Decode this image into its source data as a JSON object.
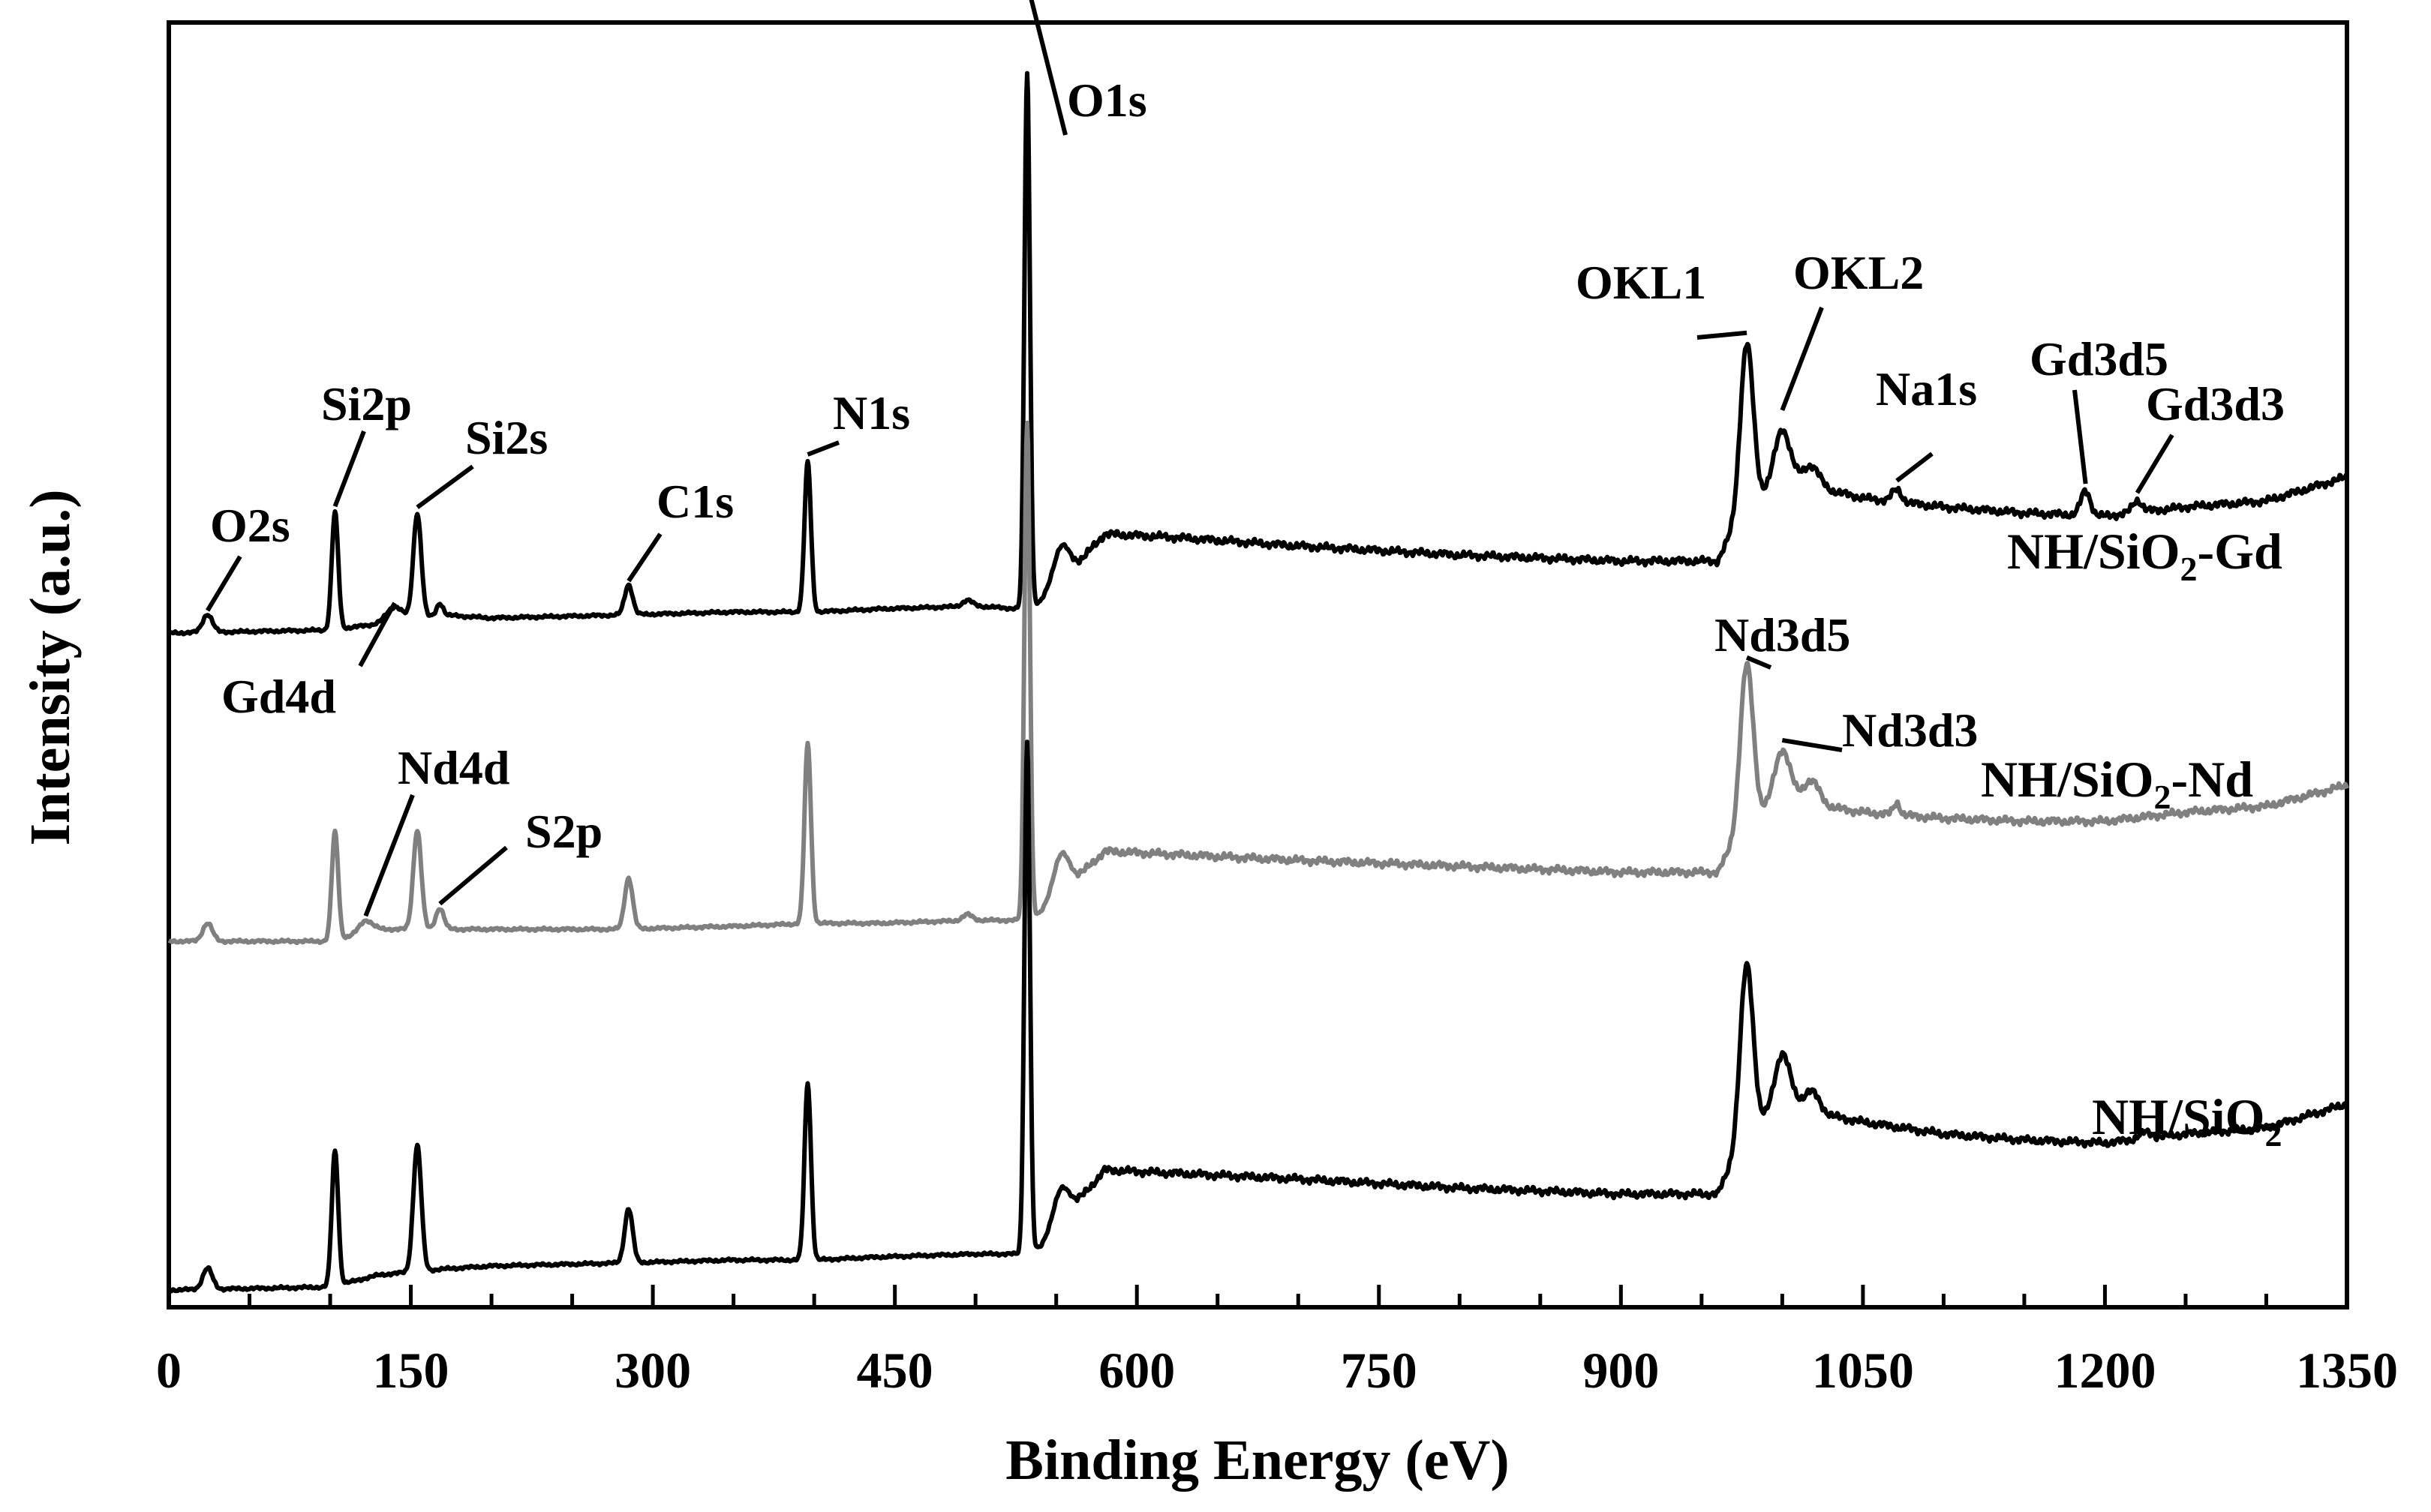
{
  "chart_data": {
    "type": "line",
    "title": "",
    "xlabel": "Binding Energy (eV)",
    "ylabel": "Intensity (a.u.)",
    "xlim": [
      0,
      1350
    ],
    "x_ticks": [
      0,
      150,
      300,
      450,
      600,
      750,
      900,
      1050,
      1200,
      1350
    ],
    "x_minor_step": 50,
    "y_ticks_labeled": false,
    "colors": {
      "black": "#000000",
      "gray": "#808080"
    },
    "series": [
      {
        "name": "NH/SiO2-Gd",
        "label_main": "NH/SiO",
        "label_sub": "2",
        "label_suffix": "-Gd",
        "color": "#000000",
        "baseline": 0.0,
        "background": [
          [
            0,
            0.04
          ],
          [
            100,
            0.05
          ],
          [
            130,
            0.07
          ],
          [
            170,
            0.1
          ],
          [
            200,
            0.09
          ],
          [
            280,
            0.1
          ],
          [
            350,
            0.11
          ],
          [
            400,
            0.11
          ],
          [
            440,
            0.12
          ],
          [
            500,
            0.13
          ],
          [
            528,
            0.12
          ],
          [
            540,
            0.14
          ],
          [
            555,
            0.22
          ],
          [
            580,
            0.37
          ],
          [
            620,
            0.36
          ],
          [
            700,
            0.33
          ],
          [
            800,
            0.3
          ],
          [
            900,
            0.28
          ],
          [
            960,
            0.28
          ],
          [
            975,
            0.44
          ],
          [
            1000,
            0.55
          ],
          [
            1050,
            0.49
          ],
          [
            1100,
            0.46
          ],
          [
            1150,
            0.44
          ],
          [
            1200,
            0.43
          ],
          [
            1250,
            0.46
          ],
          [
            1300,
            0.48
          ],
          [
            1350,
            0.56
          ]
        ],
        "peaks": [
          {
            "center": 24,
            "height": 0.06,
            "width": 3
          },
          {
            "center": 103,
            "height": 0.39,
            "width": 2
          },
          {
            "center": 154,
            "height": 0.35,
            "width": 2.5
          },
          {
            "center": 140,
            "height": 0.05,
            "width": 5
          },
          {
            "center": 168,
            "height": 0.04,
            "width": 2
          },
          {
            "center": 285,
            "height": 0.1,
            "width": 2.5
          },
          {
            "center": 396,
            "height": 0.5,
            "width": 2
          },
          {
            "center": 495,
            "height": 0.02,
            "width": 3
          },
          {
            "center": 532,
            "height": 1.78,
            "width": 1.7
          },
          {
            "center": 553,
            "height": 0.12,
            "width": 5
          },
          {
            "center": 978,
            "height": 0.55,
            "width": 4
          },
          {
            "center": 1000,
            "height": 0.17,
            "width": 5
          },
          {
            "center": 1018,
            "height": 0.07,
            "width": 5
          },
          {
            "center": 1071,
            "height": 0.04,
            "width": 3
          },
          {
            "center": 1188,
            "height": 0.08,
            "width": 3
          },
          {
            "center": 1220,
            "height": 0.04,
            "width": 3
          }
        ]
      },
      {
        "name": "NH/SiO2-Nd",
        "label_main": "NH/SiO",
        "label_sub": "2",
        "label_suffix": "-Nd",
        "color": "#808080",
        "baseline": 0.0,
        "background": [
          [
            0,
            0.0
          ],
          [
            100,
            0.0
          ],
          [
            130,
            0.04
          ],
          [
            170,
            0.04
          ],
          [
            200,
            0.04
          ],
          [
            280,
            0.04
          ],
          [
            350,
            0.05
          ],
          [
            400,
            0.06
          ],
          [
            440,
            0.06
          ],
          [
            500,
            0.07
          ],
          [
            528,
            0.07
          ],
          [
            540,
            0.09
          ],
          [
            555,
            0.17
          ],
          [
            580,
            0.3
          ],
          [
            620,
            0.29
          ],
          [
            700,
            0.27
          ],
          [
            800,
            0.25
          ],
          [
            900,
            0.23
          ],
          [
            960,
            0.23
          ],
          [
            975,
            0.38
          ],
          [
            1000,
            0.47
          ],
          [
            1050,
            0.43
          ],
          [
            1100,
            0.41
          ],
          [
            1150,
            0.4
          ],
          [
            1200,
            0.4
          ],
          [
            1250,
            0.43
          ],
          [
            1300,
            0.45
          ],
          [
            1350,
            0.52
          ]
        ],
        "peaks": [
          {
            "center": 24,
            "height": 0.06,
            "width": 3
          },
          {
            "center": 103,
            "height": 0.36,
            "width": 2
          },
          {
            "center": 154,
            "height": 0.33,
            "width": 2.5
          },
          {
            "center": 122,
            "height": 0.04,
            "width": 4
          },
          {
            "center": 168,
            "height": 0.07,
            "width": 2.5
          },
          {
            "center": 285,
            "height": 0.17,
            "width": 2.5
          },
          {
            "center": 396,
            "height": 0.6,
            "width": 2
          },
          {
            "center": 495,
            "height": 0.02,
            "width": 3
          },
          {
            "center": 532,
            "height": 1.65,
            "width": 1.7
          },
          {
            "center": 553,
            "height": 0.13,
            "width": 5
          },
          {
            "center": 978,
            "height": 0.53,
            "width": 4
          },
          {
            "center": 1000,
            "height": 0.17,
            "width": 5
          },
          {
            "center": 1018,
            "height": 0.08,
            "width": 5
          },
          {
            "center": 1071,
            "height": 0.04,
            "width": 2
          }
        ]
      },
      {
        "name": "NH/SiO2",
        "label_main": "NH/SiO",
        "label_sub": "2",
        "label_suffix": "",
        "color": "#000000",
        "baseline": 0.0,
        "background": [
          [
            0,
            0.0
          ],
          [
            100,
            0.01
          ],
          [
            130,
            0.05
          ],
          [
            170,
            0.07
          ],
          [
            200,
            0.08
          ],
          [
            280,
            0.09
          ],
          [
            350,
            0.1
          ],
          [
            400,
            0.1
          ],
          [
            440,
            0.11
          ],
          [
            500,
            0.12
          ],
          [
            528,
            0.12
          ],
          [
            540,
            0.14
          ],
          [
            555,
            0.24
          ],
          [
            580,
            0.4
          ],
          [
            620,
            0.39
          ],
          [
            700,
            0.37
          ],
          [
            800,
            0.34
          ],
          [
            900,
            0.32
          ],
          [
            960,
            0.32
          ],
          [
            975,
            0.5
          ],
          [
            1000,
            0.61
          ],
          [
            1050,
            0.56
          ],
          [
            1100,
            0.52
          ],
          [
            1150,
            0.5
          ],
          [
            1200,
            0.49
          ],
          [
            1250,
            0.52
          ],
          [
            1300,
            0.54
          ],
          [
            1350,
            0.62
          ]
        ],
        "peaks": [
          {
            "center": 24,
            "height": 0.07,
            "width": 3
          },
          {
            "center": 103,
            "height": 0.45,
            "width": 2
          },
          {
            "center": 154,
            "height": 0.42,
            "width": 2.5
          },
          {
            "center": 285,
            "height": 0.18,
            "width": 2.5
          },
          {
            "center": 396,
            "height": 0.59,
            "width": 2
          },
          {
            "center": 532,
            "height": 1.7,
            "width": 1.7
          },
          {
            "center": 553,
            "height": 0.11,
            "width": 5
          },
          {
            "center": 978,
            "height": 0.57,
            "width": 4
          },
          {
            "center": 1000,
            "height": 0.18,
            "width": 5
          },
          {
            "center": 1018,
            "height": 0.07,
            "width": 5
          },
          {
            "center": 1225,
            "height": 0.02,
            "width": 4
          }
        ]
      }
    ],
    "annotations": [
      {
        "text": "O1s",
        "series": "NH/SiO2-Gd",
        "x": 532
      },
      {
        "text": "OKL1",
        "series": "NH/SiO2-Gd",
        "x": 978
      },
      {
        "text": "OKL2",
        "series": "NH/SiO2-Gd",
        "x": 1000
      },
      {
        "text": "Na1s",
        "series": "NH/SiO2-Gd",
        "x": 1071
      },
      {
        "text": "Gd3d5",
        "series": "NH/SiO2-Gd",
        "x": 1188
      },
      {
        "text": "Gd3d3",
        "series": "NH/SiO2-Gd",
        "x": 1220
      },
      {
        "text": "Si2p",
        "series": "NH/SiO2-Gd",
        "x": 103
      },
      {
        "text": "Si2s",
        "series": "NH/SiO2-Gd",
        "x": 154
      },
      {
        "text": "O2s",
        "series": "NH/SiO2-Gd",
        "x": 24
      },
      {
        "text": "C1s",
        "series": "NH/SiO2-Gd",
        "x": 285
      },
      {
        "text": "N1s",
        "series": "NH/SiO2-Gd",
        "x": 396
      },
      {
        "text": "Gd4d",
        "series": "NH/SiO2-Gd",
        "x": 140
      },
      {
        "text": "Nd3d5",
        "series": "NH/SiO2-Nd",
        "x": 978
      },
      {
        "text": "Nd3d3",
        "series": "NH/SiO2-Nd",
        "x": 1000
      },
      {
        "text": "Nd4d",
        "series": "NH/SiO2-Nd",
        "x": 122
      },
      {
        "text": "S2p",
        "series": "NH/SiO2-Nd",
        "x": 168
      }
    ]
  }
}
